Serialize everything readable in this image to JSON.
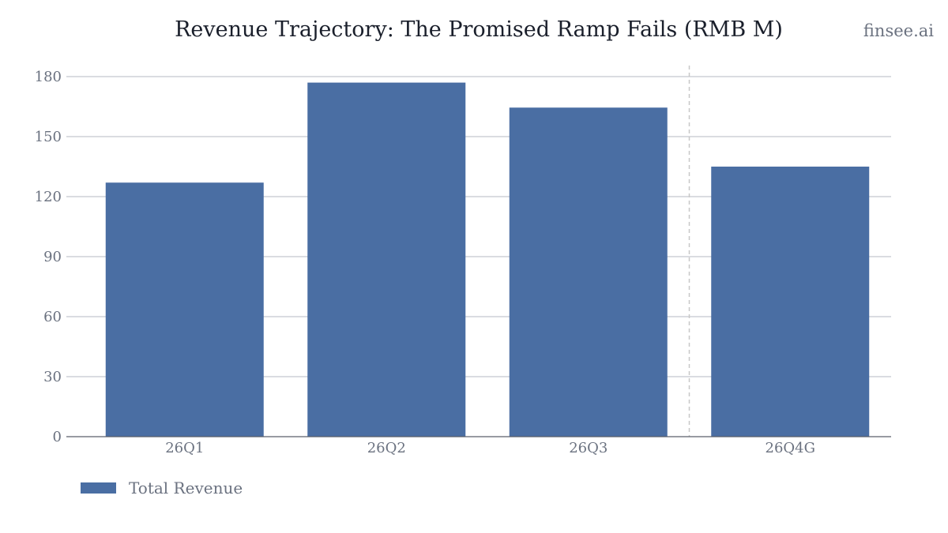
{
  "brand": "finsee.ai",
  "colors": {
    "bar": "#4a6ea3",
    "grid": "#c4c7cf",
    "axis": "#5b5f6a",
    "divider": "#c8c8c8",
    "text": "#6b7280",
    "title": "#1a1f2b"
  },
  "chart_data": {
    "type": "bar",
    "title": "Revenue Trajectory: The Promised Ramp Fails (RMB M)",
    "xlabel": "",
    "ylabel": "",
    "categories": [
      "26Q1",
      "26Q2",
      "26Q3",
      "26Q4G"
    ],
    "series": [
      {
        "name": "Total Revenue",
        "values": [
          127,
          177,
          164.5,
          135
        ]
      }
    ],
    "ylim": [
      0,
      180
    ],
    "yticks": [
      0,
      30,
      60,
      90,
      120,
      150,
      180
    ],
    "grid": true,
    "legend": "bottom-left",
    "divider_between": [
      "26Q3",
      "26Q4G"
    ]
  }
}
